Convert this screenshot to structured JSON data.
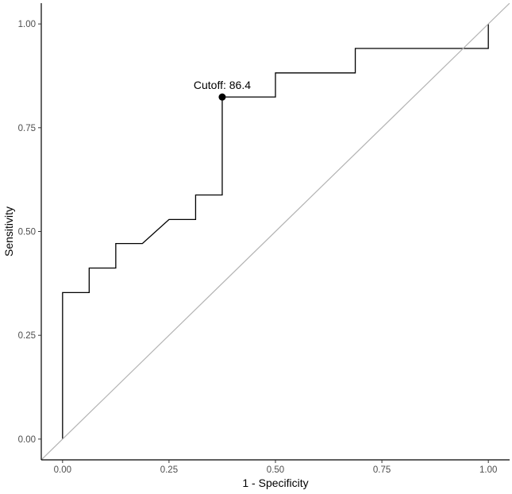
{
  "chart_data": {
    "type": "line",
    "title": "",
    "xlabel": "1 - Specificity",
    "ylabel": "Sensitivity",
    "xlim": [
      -0.05,
      1.05
    ],
    "ylim": [
      -0.05,
      1.05
    ],
    "x_ticks": [
      "0.00",
      "0.25",
      "0.50",
      "0.75",
      "1.00"
    ],
    "y_ticks": [
      "0.00",
      "0.25",
      "0.50",
      "0.75",
      "1.00"
    ],
    "grid": false,
    "series": [
      {
        "kind": "roc-step",
        "color": "#000000",
        "points": [
          [
            0.0,
            0.0
          ],
          [
            0.0,
            0.353
          ],
          [
            0.0625,
            0.353
          ],
          [
            0.0625,
            0.412
          ],
          [
            0.125,
            0.412
          ],
          [
            0.125,
            0.471
          ],
          [
            0.1875,
            0.471
          ],
          [
            0.25,
            0.529
          ],
          [
            0.3125,
            0.529
          ],
          [
            0.3125,
            0.588
          ],
          [
            0.375,
            0.588
          ],
          [
            0.375,
            0.824
          ],
          [
            0.5,
            0.824
          ],
          [
            0.5,
            0.882
          ],
          [
            0.6875,
            0.882
          ],
          [
            0.6875,
            0.941
          ],
          [
            1.0,
            0.941
          ],
          [
            1.0,
            1.0
          ]
        ]
      },
      {
        "kind": "reference-diagonal",
        "color": "#b3b3b3",
        "points": [
          [
            -0.05,
            -0.05
          ],
          [
            1.05,
            1.05
          ]
        ]
      }
    ],
    "annotations": [
      {
        "text": "Cutoff: 86.4",
        "x": 0.375,
        "y": 0.824
      }
    ]
  }
}
